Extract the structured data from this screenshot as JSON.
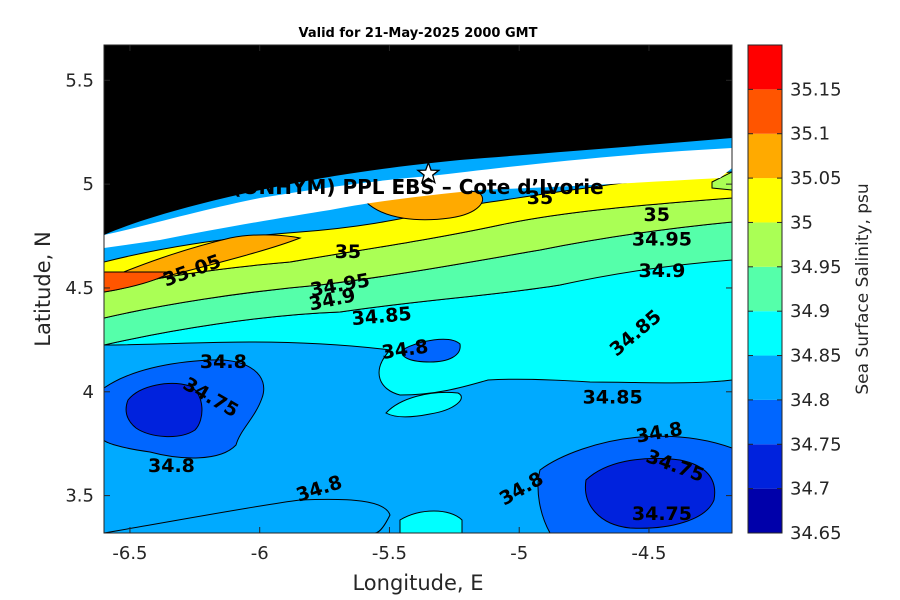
{
  "chart_data": {
    "type": "contour",
    "title": "Valid for 21-May-2025 2000 GMT",
    "xlabel": "Longitude, E",
    "ylabel": "Latitude, N",
    "xlim": [
      -6.6,
      -4.18
    ],
    "ylim": [
      3.32,
      5.67
    ],
    "x_ticks": [
      "-6.5",
      "-6",
      "-5.5",
      "-5",
      "-4.5"
    ],
    "y_ticks": [
      "5.5",
      "5",
      "4.5",
      "4",
      "3.5"
    ],
    "site_label": "(ONHYM) PPL EBS  – Cote d’Ivorie",
    "site_marker": {
      "lon": -5.35,
      "lat": 5.05,
      "symbol": "star"
    },
    "colorbar": {
      "label": "Sea Surface Salinity, psu",
      "range": [
        34.65,
        35.2
      ],
      "levels": [
        "35.15",
        "35.1",
        "35.05",
        "35",
        "34.95",
        "34.9",
        "34.85",
        "34.8",
        "34.75",
        "34.7",
        "34.65"
      ],
      "colors": [
        "#0000aa",
        "#0022dd",
        "#0066ff",
        "#00aaff",
        "#00ffff",
        "#55ffaa",
        "#aaff55",
        "#ffff00",
        "#ffaa00",
        "#ff5500",
        "#ff0000"
      ]
    },
    "contour_labels": [
      {
        "text": "35.05",
        "lon": -6.26,
        "lat": 4.58,
        "rot": -20
      },
      {
        "text": "35",
        "lon": -5.66,
        "lat": 4.67,
        "rot": 0
      },
      {
        "text": "34.95",
        "lon": -5.69,
        "lat": 4.51,
        "rot": -10
      },
      {
        "text": "34.9",
        "lon": -5.72,
        "lat": 4.44,
        "rot": -12
      },
      {
        "text": "34.85",
        "lon": -5.53,
        "lat": 4.36,
        "rot": -5
      },
      {
        "text": "34.8",
        "lon": -5.44,
        "lat": 4.2,
        "rot": -8
      },
      {
        "text": "34.8",
        "lon": -6.14,
        "lat": 4.14,
        "rot": 0
      },
      {
        "text": "34.75",
        "lon": -6.19,
        "lat": 3.97,
        "rot": 30
      },
      {
        "text": "34.8",
        "lon": -6.34,
        "lat": 3.64,
        "rot": 0
      },
      {
        "text": "34.8",
        "lon": -5.77,
        "lat": 3.53,
        "rot": -18
      },
      {
        "text": "34.8",
        "lon": -4.99,
        "lat": 3.53,
        "rot": -30
      },
      {
        "text": "34.85",
        "lon": -4.64,
        "lat": 3.97,
        "rot": 0
      },
      {
        "text": "34.85",
        "lon": -4.55,
        "lat": 4.28,
        "rot": -40
      },
      {
        "text": "34.9",
        "lon": -4.45,
        "lat": 4.58,
        "rot": 0
      },
      {
        "text": "34.95",
        "lon": -4.45,
        "lat": 4.73,
        "rot": 0
      },
      {
        "text": "35",
        "lon": -4.47,
        "lat": 4.85,
        "rot": 0
      },
      {
        "text": "35",
        "lon": -4.92,
        "lat": 4.93,
        "rot": 0
      },
      {
        "text": "34.8",
        "lon": -4.46,
        "lat": 3.8,
        "rot": -10
      },
      {
        "text": "34.75",
        "lon": -4.4,
        "lat": 3.64,
        "rot": 20
      },
      {
        "text": "34.75",
        "lon": -4.45,
        "lat": 3.41,
        "rot": 0
      }
    ]
  }
}
